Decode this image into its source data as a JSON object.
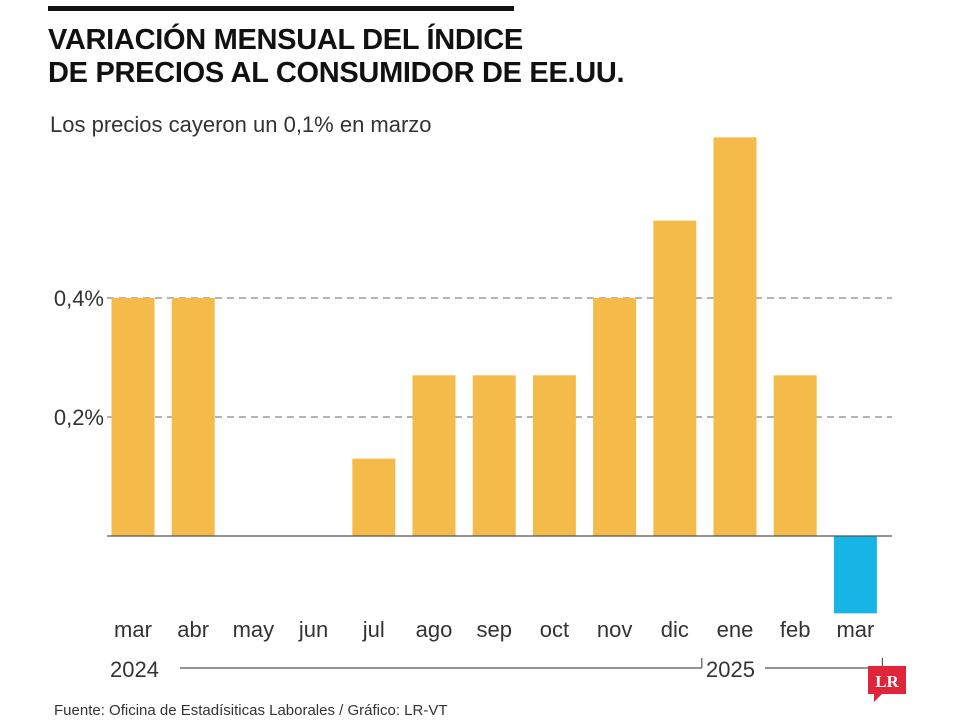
{
  "title_lines": [
    "VARIACIÓN MENSUAL DEL ÍNDICE",
    "DE PRECIOS AL CONSUMIDOR DE EE.UU."
  ],
  "subtitle": "Los precios cayeron un 0,1% en marzo",
  "source": "Fuente: Oficina de Estadísiticas Laborales / Gráfico: LR-VT",
  "logo_text": "LR",
  "colors": {
    "positive": "#f5bb4a",
    "negative": "#17b5e6",
    "grid": "#888888",
    "logo": "#e0243a"
  },
  "chart_data": {
    "type": "bar",
    "title": "VARIACIÓN MENSUAL DEL ÍNDICE DE PRECIOS AL CONSUMIDOR DE EE.UU.",
    "subtitle": "Los precios cayeron un 0,1% en marzo",
    "categories": [
      "mar",
      "abr",
      "may",
      "jun",
      "jul",
      "ago",
      "sep",
      "oct",
      "nov",
      "dic",
      "ene",
      "feb",
      "mar"
    ],
    "values": [
      0.4,
      0.4,
      0.0,
      0.0,
      0.13,
      0.27,
      0.27,
      0.27,
      0.4,
      0.53,
      0.67,
      0.27,
      -0.13
    ],
    "year_groups": [
      {
        "label": "2024",
        "from": 0,
        "to": 9
      },
      {
        "label": "2025",
        "from": 10,
        "to": 12
      }
    ],
    "y_ticks": [
      {
        "value": 0.2,
        "label": "0,2%"
      },
      {
        "value": 0.4,
        "label": "0,4%"
      }
    ],
    "ylim": [
      -0.13,
      0.67
    ],
    "grid": "dashed at ticks",
    "xlabel": "",
    "ylabel": ""
  }
}
